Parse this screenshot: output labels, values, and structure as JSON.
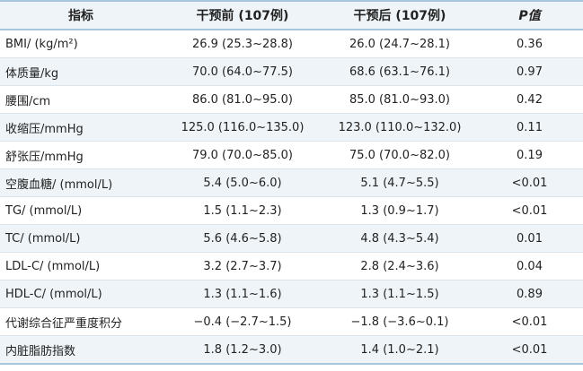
{
  "table": {
    "headers": [
      "指标",
      "干预前 (107例)",
      "干预后 (107例)",
      "P值"
    ],
    "rows": [
      [
        "BMI/ (kg/m²)",
        "26.9 (25.3~28.8)",
        "26.0 (24.7~28.1)",
        "0.36"
      ],
      [
        "体质量/kg",
        "70.0 (64.0~77.5)",
        "68.6 (63.1~76.1)",
        "0.97"
      ],
      [
        "腰围/cm",
        "86.0 (81.0~95.0)",
        "85.0 (81.0~93.0)",
        "0.42"
      ],
      [
        "收缩压/mmHg",
        "125.0 (116.0~135.0)",
        "123.0 (110.0~132.0)",
        "0.11"
      ],
      [
        "舒张压/mmHg",
        "79.0 (70.0~85.0)",
        "75.0 (70.0~82.0)",
        "0.19"
      ],
      [
        "空腹血糖/ (mmol/L)",
        "5.4 (5.0~6.0)",
        "5.1 (4.7~5.5)",
        "<0.01"
      ],
      [
        "TG/ (mmol/L)",
        "1.5 (1.1~2.3)",
        "1.3 (0.9~1.7)",
        "<0.01"
      ],
      [
        "TC/ (mmol/L)",
        "5.6 (4.6~5.8)",
        "4.8 (4.3~5.4)",
        "0.01"
      ],
      [
        "LDL-C/ (mmol/L)",
        "3.2 (2.7~3.7)",
        "2.8 (2.4~3.6)",
        "0.04"
      ],
      [
        "HDL-C/ (mmol/L)",
        "1.3 (1.1~1.6)",
        "1.3 (1.1~1.5)",
        "0.89"
      ],
      [
        "代谢综合征严重度积分",
        "−0.4 (−2.7~1.5)",
        "−1.8 (−3.6~0.1)",
        "<0.01"
      ],
      [
        "内脏脂肪指数",
        "1.8 (1.2~3.0)",
        "1.4 (1.0~2.1)",
        "<0.01"
      ]
    ]
  }
}
